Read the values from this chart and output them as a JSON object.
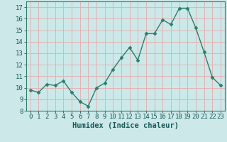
{
  "x": [
    0,
    1,
    2,
    3,
    4,
    5,
    6,
    7,
    8,
    9,
    10,
    11,
    12,
    13,
    14,
    15,
    16,
    17,
    18,
    19,
    20,
    21,
    22,
    23
  ],
  "y": [
    9.8,
    9.6,
    10.3,
    10.2,
    10.6,
    9.6,
    8.8,
    8.4,
    10.0,
    10.4,
    11.6,
    12.6,
    13.5,
    12.4,
    14.7,
    14.7,
    15.9,
    15.5,
    16.9,
    16.9,
    15.2,
    13.1,
    10.9,
    10.2
  ],
  "line_color": "#2e7d6e",
  "marker": "D",
  "marker_size": 2.5,
  "line_width": 1.0,
  "bg_color": "#cce8e8",
  "grid_color": "#e8aaaa",
  "xlabel": "Humidex (Indice chaleur)",
  "xlim": [
    -0.5,
    23.5
  ],
  "ylim": [
    8,
    17.5
  ],
  "yticks": [
    8,
    9,
    10,
    11,
    12,
    13,
    14,
    15,
    16,
    17
  ],
  "xticks": [
    0,
    1,
    2,
    3,
    4,
    5,
    6,
    7,
    8,
    9,
    10,
    11,
    12,
    13,
    14,
    15,
    16,
    17,
    18,
    19,
    20,
    21,
    22,
    23
  ],
  "xlabel_fontsize": 7.5,
  "tick_fontsize": 6.5
}
